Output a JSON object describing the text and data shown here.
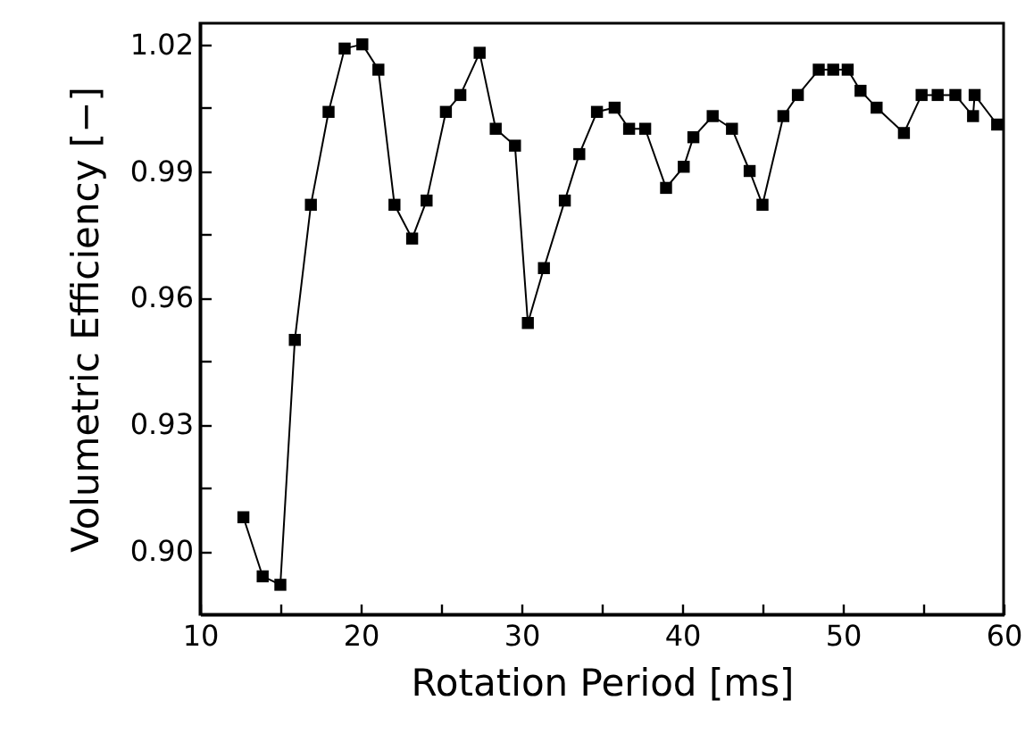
{
  "chart_data": {
    "type": "line",
    "xlabel": "Rotation Period [ms]",
    "ylabel": "Volumetric Efficiency [−]",
    "marker": "square",
    "line_style": "solid",
    "grid": false,
    "xlim": [
      10,
      60
    ],
    "ylim": [
      0.885,
      1.025
    ],
    "xticks": [
      10,
      {
        "value": 15,
        "label": null
      },
      20,
      {
        "value": 25,
        "label": null
      },
      30,
      {
        "value": 35,
        "label": null
      },
      40,
      {
        "value": 45,
        "label": null
      },
      50,
      {
        "value": 55,
        "label": null
      },
      60
    ],
    "yticks": [
      {
        "value": 0.9,
        "label": "0.90"
      },
      {
        "value": 0.915,
        "label": null
      },
      {
        "value": 0.93,
        "label": "0.93"
      },
      {
        "value": 0.945,
        "label": null
      },
      {
        "value": 0.96,
        "label": "0.96"
      },
      {
        "value": 0.975,
        "label": null
      },
      {
        "value": 0.99,
        "label": "0.99"
      },
      {
        "value": 1.005,
        "label": null
      },
      {
        "value": 1.02,
        "label": "1.02"
      }
    ],
    "series": [
      {
        "color": "#000000",
        "x": [
          12.7,
          13.9,
          15.0,
          15.9,
          16.9,
          18.0,
          19.0,
          20.1,
          21.1,
          22.1,
          23.2,
          24.1,
          25.3,
          26.2,
          27.4,
          28.4,
          29.6,
          30.4,
          31.4,
          32.7,
          33.6,
          34.7,
          35.8,
          36.7,
          37.7,
          39.0,
          40.1,
          40.7,
          41.9,
          43.1,
          44.2,
          45.0,
          46.3,
          47.2,
          48.5,
          49.4,
          50.3,
          51.1,
          52.1,
          53.8,
          54.9,
          55.9,
          57.0,
          58.1,
          58.2,
          59.6
        ],
        "values": [
          0.908,
          0.894,
          0.892,
          0.95,
          0.982,
          1.004,
          1.019,
          1.02,
          1.014,
          0.982,
          0.974,
          0.983,
          1.004,
          1.008,
          1.018,
          1.0,
          0.996,
          0.954,
          0.967,
          0.983,
          0.994,
          1.004,
          1.005,
          1.0,
          1.0,
          0.986,
          0.991,
          0.998,
          1.003,
          1.0,
          0.99,
          0.982,
          1.003,
          1.008,
          1.014,
          1.014,
          1.014,
          1.009,
          1.005,
          0.999,
          1.008,
          1.008,
          1.008,
          1.003,
          1.008,
          1.001
        ]
      }
    ]
  }
}
